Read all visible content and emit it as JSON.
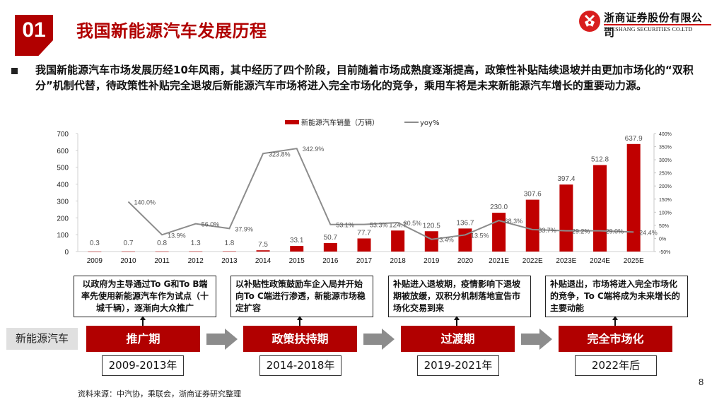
{
  "header": {
    "section_number": "01",
    "title": "我国新能源汽车发展历程",
    "logo": {
      "cn": "浙商证券股份有限公司",
      "en": "ZHESHANG SECURITIES CO.LTD"
    }
  },
  "summary": {
    "text": "我国新能源汽车市场发展历经10年风雨，其中经历了四个阶段，目前随着市场成熟度逐渐提高，政策性补贴陆续退坡并由更加市场化的“双积分”机制代替，待政策性补贴完全退坡后新能源汽车市场将进入完全市场化的竞争，乘用车将是未来新能源汽车增长的重要动力源。"
  },
  "chart_data": {
    "type": "bar+line",
    "title": "",
    "legend": [
      {
        "name": "新能源汽车销量（万辆）",
        "type": "bar",
        "color": "#c00000"
      },
      {
        "name": "yoy%",
        "type": "line",
        "color": "#8c8c8c"
      }
    ],
    "legend_position": "top",
    "categories": [
      "2009",
      "2010",
      "2011",
      "2012",
      "2013",
      "2014",
      "2015",
      "2016",
      "2017",
      "2018",
      "2019",
      "2020",
      "2021E",
      "2022E",
      "2023E",
      "2024E",
      "2025E"
    ],
    "series": [
      {
        "name": "新能源汽车销量（万辆）",
        "axis": "left",
        "values": [
          0.3,
          0.7,
          0.8,
          1.3,
          1.8,
          7.5,
          33.1,
          50.7,
          77.7,
          124.7,
          120.5,
          136.7,
          230.0,
          307.6,
          397.4,
          512.8,
          637.9
        ],
        "labels": [
          "0.3",
          "0.7",
          "0.8",
          "1.3",
          "1.8",
          "7.5",
          "33.1",
          "50.7",
          "77.7",
          "124.7",
          "120.5",
          "136.7",
          "230.0",
          "307.6",
          "397.4",
          "512.8",
          "637.9"
        ]
      },
      {
        "name": "yoy%",
        "axis": "right",
        "values": [
          null,
          140.0,
          13.9,
          56.0,
          37.9,
          323.8,
          342.9,
          53.1,
          53.3,
          60.5,
          -3.4,
          13.5,
          68.3,
          33.7,
          29.2,
          29.0,
          24.4
        ],
        "labels": [
          "",
          "140.0%",
          "13.9%",
          "56.0%",
          "37.9%",
          "323.8%",
          "342.9%",
          "53.1%",
          "53.3%",
          "60.5%",
          "-3.4%",
          "13.5%",
          "68.3%",
          "33.7%",
          "29.2%",
          "29.0%",
          "24.4%"
        ]
      }
    ],
    "left_axis": {
      "ylim": [
        0,
        700
      ],
      "ticks": [
        "0",
        "100",
        "200",
        "300",
        "400",
        "500",
        "600",
        "700"
      ]
    },
    "right_axis": {
      "ylim": [
        -50,
        400
      ],
      "ticks": [
        "-50%",
        "0%",
        "50%",
        "100%",
        "150%",
        "200%",
        "250%",
        "300%",
        "350%",
        "400%"
      ]
    },
    "grid": false
  },
  "timeline": {
    "row_label": "新能源汽车",
    "stages": [
      {
        "name": "推广期",
        "years": "2009-2013年",
        "description": "以政府为主导通过To G和To B端率先使用新能源汽车作为试点（十城千辆），逐渐向大众推广"
      },
      {
        "name": "政策扶持期",
        "years": "2014-2018年",
        "description": "以补贴性政策鼓励车企入局并开始向To C端进行渗透，新能源市场稳定扩容"
      },
      {
        "name": "过渡期",
        "years": "2019-2021年",
        "description": "补贴进入退坡期，疫情影响下退坡期被放缓，双积分机制落地宣告市场化交易到来"
      },
      {
        "name": "完全市场化",
        "years": "2022年后",
        "description": "补贴退出，市场将进入完全市场化的竞争，To C端将成为未来增长的主要动能"
      }
    ]
  },
  "footer": {
    "source": "资料来源：中汽协，乘联会，浙商证券研究整理",
    "page_number": "8"
  },
  "colors": {
    "brand_red": "#b10000",
    "bar_red": "#c00000",
    "line_gray": "#8c8c8c",
    "arrow_gray": "#8c8c8c"
  }
}
